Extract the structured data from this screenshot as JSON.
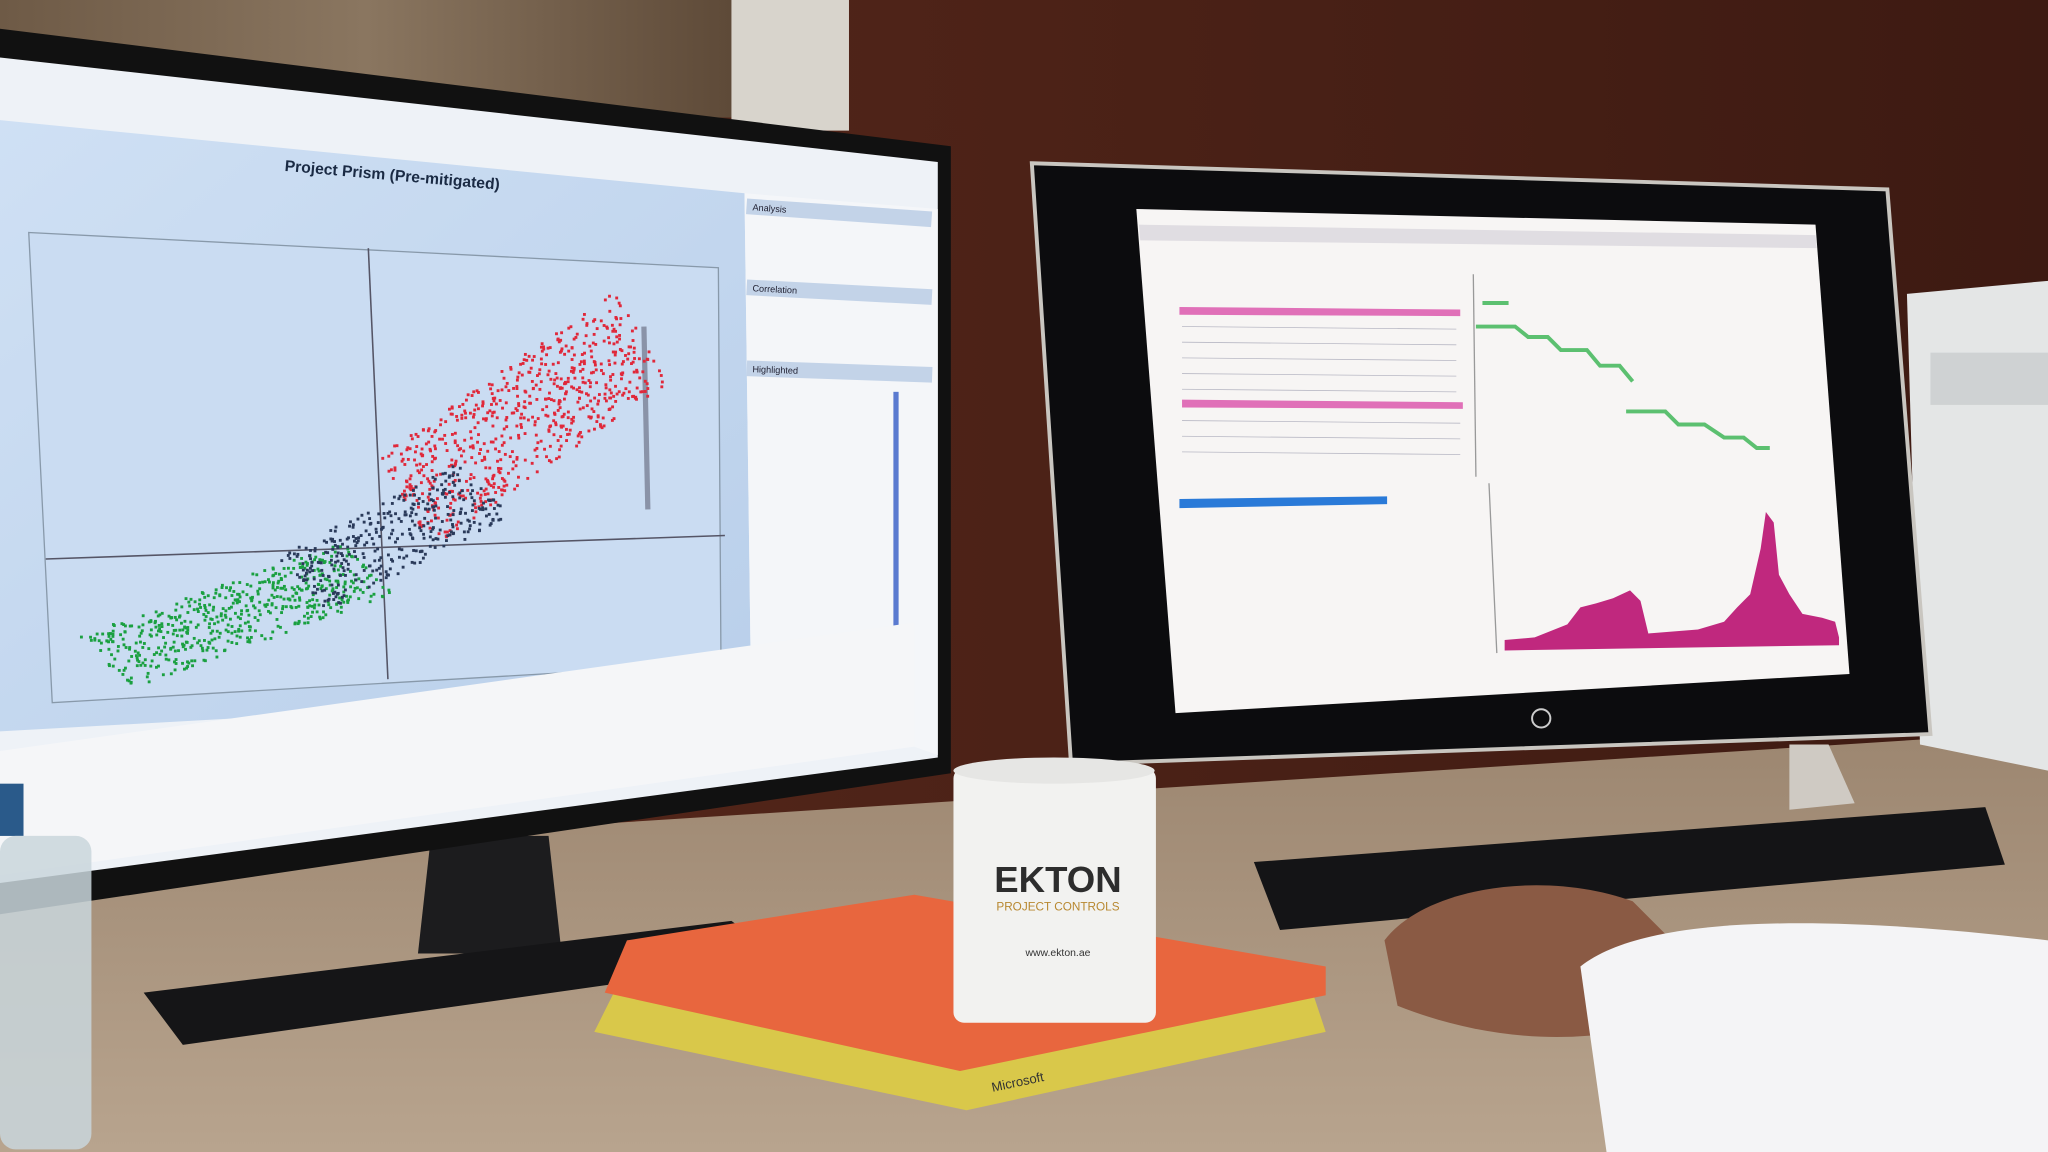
{
  "left_monitor": {
    "chart_title": "Project Prism (Pre-mitigated)",
    "side_panel": [
      "Analysis",
      "Correlation",
      "Highlighted"
    ]
  },
  "mug": {
    "brand": "EKTON",
    "tagline": "PROJECT CONTROLS",
    "website": "www.ekton.ae"
  },
  "book": {
    "publisher": "Microsoft"
  }
}
